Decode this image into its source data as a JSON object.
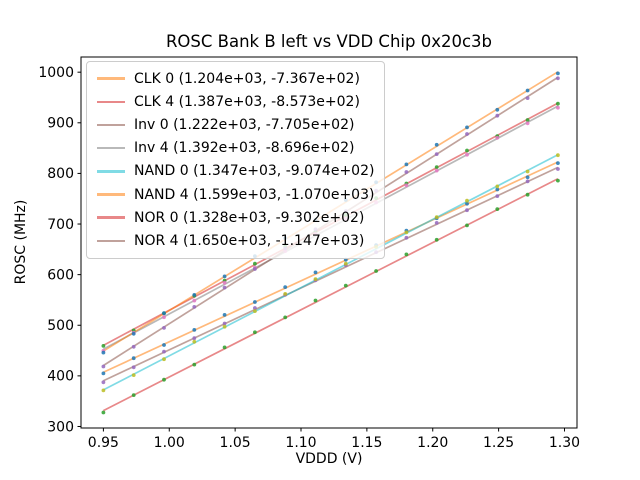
{
  "chart_data": {
    "type": "scatter",
    "title": "ROSC Bank B left vs VDD Chip 0x20c3b",
    "xlabel": "VDDD (V)",
    "ylabel": "ROSC (MHz)",
    "x_tick_labels": [
      "0.95",
      "1.00",
      "1.05",
      "1.10",
      "1.15",
      "1.20",
      "1.25",
      "1.30"
    ],
    "y_tick_labels": [
      "300",
      "400",
      "500",
      "600",
      "700",
      "800",
      "900",
      "1000"
    ],
    "xlim": [
      0.933,
      1.3095
    ],
    "ylim": [
      297,
      1030
    ],
    "grid": false,
    "legend_position": "upper left",
    "x_sampling": {
      "start": 0.95,
      "stop": 1.295,
      "count": 16
    },
    "note": "Each series: measured scatter points plus linear fit line; legend shows (slope MHz/V, intercept MHz); y = slope*x + intercept",
    "series": [
      {
        "name": "CLK 0",
        "label": "CLK 0 (1.204e+03, -7.367e+02)",
        "slope": 1204,
        "intercept": -736.7,
        "line_color": "#ff7f0e",
        "marker_color": "#1f77b4"
      },
      {
        "name": "CLK 4",
        "label": "CLK 4 (1.387e+03, -8.573e+02)",
        "slope": 1387,
        "intercept": -857.3,
        "line_color": "#d62728",
        "marker_color": "#2ca02c"
      },
      {
        "name": "Inv 0",
        "label": "Inv 0 (1.222e+03, -7.705e+02)",
        "slope": 1222,
        "intercept": -770.5,
        "line_color": "#8c564b",
        "marker_color": "#9467bd"
      },
      {
        "name": "Inv 4",
        "label": "Inv 4 (1.392e+03, -8.696e+02)",
        "slope": 1392,
        "intercept": -869.6,
        "line_color": "#7f7f7f",
        "marker_color": "#e377c2"
      },
      {
        "name": "NAND 0",
        "label": "NAND 0 (1.347e+03, -9.074e+02)",
        "slope": 1347,
        "intercept": -907.4,
        "line_color": "#17becf",
        "marker_color": "#bcbd22"
      },
      {
        "name": "NAND 4",
        "label": "NAND 4 (1.599e+03, -1.070e+03)",
        "slope": 1599,
        "intercept": -1070.0,
        "line_color": "#ff7f0e",
        "marker_color": "#1f77b4"
      },
      {
        "name": "NOR 0",
        "label": "NOR 0 (1.328e+03, -9.302e+02)",
        "slope": 1328,
        "intercept": -930.2,
        "line_color": "#d62728",
        "marker_color": "#2ca02c"
      },
      {
        "name": "NOR 4",
        "label": "NOR 4 (1.650e+03, -1.147e+03)",
        "slope": 1650,
        "intercept": -1147.0,
        "line_color": "#8c564b",
        "marker_color": "#9467bd"
      }
    ],
    "style": {
      "line_alpha": 0.55,
      "marker_alpha": 0.85,
      "spine_color": "#000000"
    }
  }
}
